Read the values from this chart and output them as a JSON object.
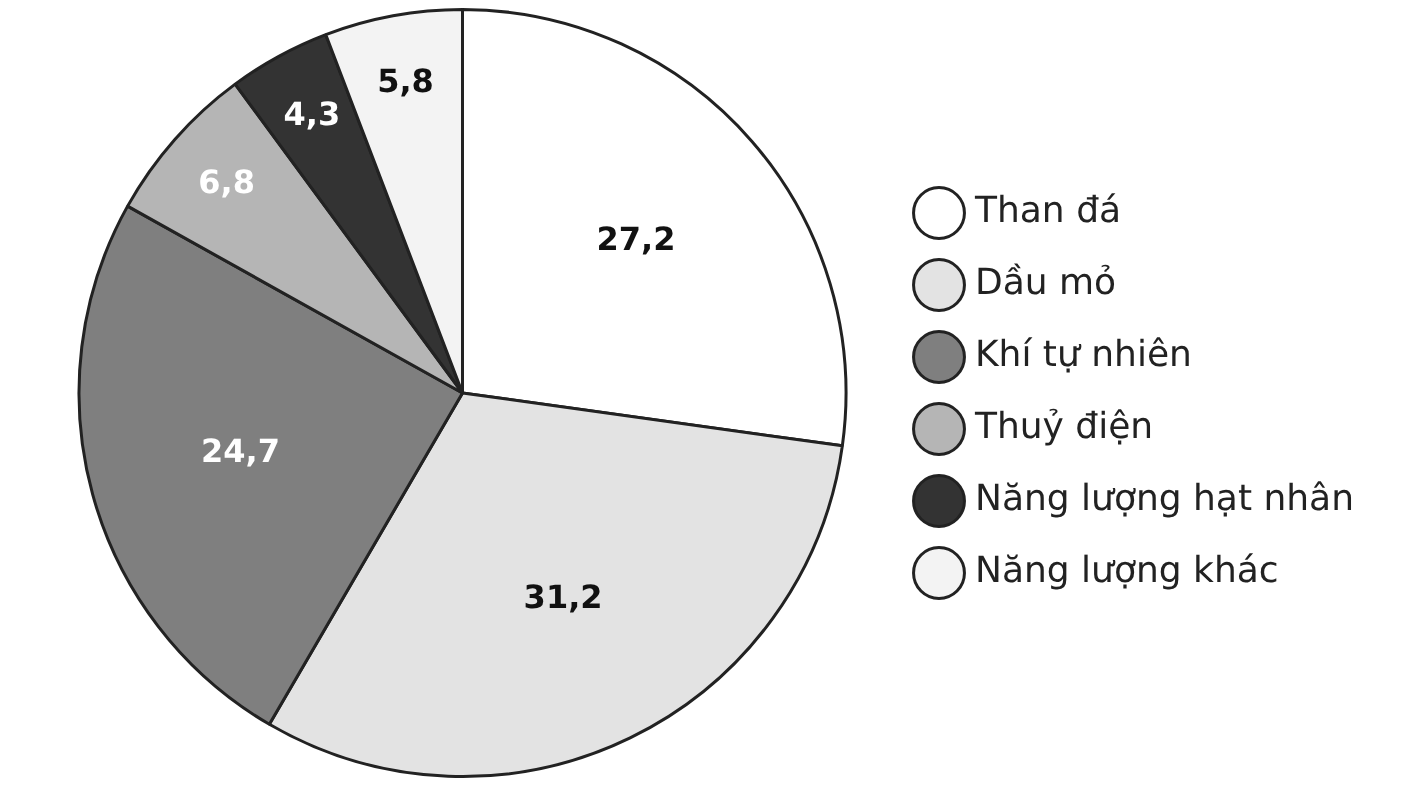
{
  "chart_data": {
    "type": "pie",
    "categories": [
      "Than đá",
      "Dầu mỏ",
      "Khí tự nhiên",
      "Thuỷ điện",
      "Năng lượng hạt nhân",
      "Năng lượng khác"
    ],
    "values": [
      27.2,
      31.2,
      24.7,
      6.8,
      4.3,
      5.8
    ],
    "value_labels": [
      "27,2",
      "31,2",
      "24,7",
      "6,8",
      "4,3",
      "5,8"
    ],
    "colors": [
      "#ffffff",
      "#e3e3e3",
      "#7f7f7f",
      "#b5b5b5",
      "#333333",
      "#f3f3f3"
    ],
    "legend": "right"
  }
}
